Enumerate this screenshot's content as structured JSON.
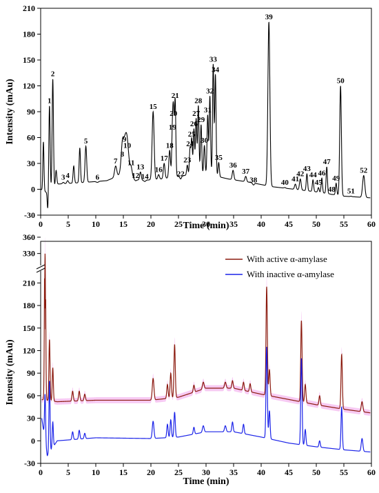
{
  "chart_data": [
    {
      "type": "line",
      "xlabel": "Time (min)",
      "ylabel": "Intensity (mAu)",
      "xlim": [
        0,
        60
      ],
      "ylim": [
        -30,
        210
      ],
      "x_ticks": [
        0,
        5,
        10,
        15,
        20,
        25,
        30,
        35,
        40,
        45,
        50,
        55,
        60
      ],
      "y_ticks": [
        -30,
        0,
        30,
        60,
        90,
        120,
        150,
        180,
        210
      ],
      "baseline": [
        [
          0,
          0
        ],
        [
          1.5,
          -5
        ],
        [
          3,
          6
        ],
        [
          8,
          8
        ],
        [
          12,
          10
        ],
        [
          15,
          18
        ],
        [
          18,
          10
        ],
        [
          22,
          12
        ],
        [
          26,
          16
        ],
        [
          30,
          18
        ],
        [
          34,
          12
        ],
        [
          38,
          8
        ],
        [
          42,
          3
        ],
        [
          46,
          0
        ],
        [
          50,
          -3
        ],
        [
          55,
          -8
        ],
        [
          60,
          -10
        ]
      ],
      "peaks": [
        {
          "label": "1",
          "x": 1.6,
          "y": 97,
          "w": 0.12
        },
        {
          "label": "2",
          "x": 2.2,
          "y": 128,
          "w": 0.12
        },
        {
          "label": "3",
          "x": 4.1,
          "y": 8,
          "w": 0.15
        },
        {
          "label": "4",
          "x": 4.9,
          "y": 10,
          "w": 0.15
        },
        {
          "label": "5",
          "x": 8.2,
          "y": 50,
          "w": 0.15
        },
        {
          "label": "6",
          "x": 10.3,
          "y": 8,
          "w": 0.2
        },
        {
          "label": "7",
          "x": 13.6,
          "y": 27,
          "w": 0.2
        },
        {
          "label": "8",
          "x": 14.8,
          "y": 35,
          "w": 0.2
        },
        {
          "label": "9",
          "x": 15.2,
          "y": 52,
          "w": 0.4
        },
        {
          "label": "10",
          "x": 15.7,
          "y": 45,
          "w": 0.3
        },
        {
          "label": "11",
          "x": 16.4,
          "y": 25,
          "w": 0.2
        },
        {
          "label": "12",
          "x": 17.2,
          "y": 10,
          "w": 0.2
        },
        {
          "label": "13",
          "x": 18.1,
          "y": 20,
          "w": 0.15
        },
        {
          "label": "14",
          "x": 18.9,
          "y": 9,
          "w": 0.15
        },
        {
          "label": "15",
          "x": 20.4,
          "y": 90,
          "w": 0.18
        },
        {
          "label": "16",
          "x": 21.4,
          "y": 17,
          "w": 0.15
        },
        {
          "label": "17",
          "x": 22.4,
          "y": 30,
          "w": 0.15
        },
        {
          "label": "18",
          "x": 23.4,
          "y": 45,
          "w": 0.15
        },
        {
          "label": "19",
          "x": 23.9,
          "y": 66,
          "w": 0.12
        },
        {
          "label": "20",
          "x": 24.1,
          "y": 82,
          "w": 0.12
        },
        {
          "label": "21",
          "x": 24.4,
          "y": 103,
          "w": 0.12
        },
        {
          "label": "22",
          "x": 25.4,
          "y": 12,
          "w": 0.15
        },
        {
          "label": "23",
          "x": 26.6,
          "y": 28,
          "w": 0.12
        },
        {
          "label": "24",
          "x": 27.1,
          "y": 47,
          "w": 0.12
        },
        {
          "label": "25",
          "x": 27.4,
          "y": 58,
          "w": 0.12
        },
        {
          "label": "26",
          "x": 27.8,
          "y": 70,
          "w": 0.12
        },
        {
          "label": "27",
          "x": 28.2,
          "y": 82,
          "w": 0.12
        },
        {
          "label": "28",
          "x": 28.6,
          "y": 97,
          "w": 0.12
        },
        {
          "label": "29",
          "x": 29.1,
          "y": 75,
          "w": 0.12
        },
        {
          "label": "30",
          "x": 29.7,
          "y": 51,
          "w": 0.12
        },
        {
          "label": "31",
          "x": 30.3,
          "y": 86,
          "w": 0.12
        },
        {
          "label": "32",
          "x": 30.7,
          "y": 108,
          "w": 0.12
        },
        {
          "label": "33",
          "x": 31.3,
          "y": 145,
          "w": 0.12
        },
        {
          "label": "34",
          "x": 31.7,
          "y": 133,
          "w": 0.12
        },
        {
          "label": "35",
          "x": 32.3,
          "y": 31,
          "w": 0.12
        },
        {
          "label": "36",
          "x": 34.9,
          "y": 22,
          "w": 0.15
        },
        {
          "label": "37",
          "x": 37.2,
          "y": 15,
          "w": 0.15
        },
        {
          "label": "38",
          "x": 38.6,
          "y": 5,
          "w": 0.15
        },
        {
          "label": "39",
          "x": 41.4,
          "y": 194,
          "w": 0.18
        },
        {
          "label": "40",
          "x": 44.3,
          "y": 2,
          "w": 0.15
        },
        {
          "label": "41",
          "x": 46.2,
          "y": 6,
          "w": 0.15
        },
        {
          "label": "42",
          "x": 47.1,
          "y": 12,
          "w": 0.15
        },
        {
          "label": "43",
          "x": 48.3,
          "y": 18,
          "w": 0.12
        },
        {
          "label": "44",
          "x": 49.4,
          "y": 11,
          "w": 0.12
        },
        {
          "label": "45",
          "x": 50.4,
          "y": 2,
          "w": 0.12
        },
        {
          "label": "46",
          "x": 51.0,
          "y": 13,
          "w": 0.12
        },
        {
          "label": "47",
          "x": 51.9,
          "y": 26,
          "w": 0.12
        },
        {
          "label": "48",
          "x": 52.8,
          "y": -6,
          "w": 0.12
        },
        {
          "label": "49",
          "x": 53.6,
          "y": 7,
          "w": 0.12
        },
        {
          "label": "50",
          "x": 54.4,
          "y": 120,
          "w": 0.15
        },
        {
          "label": "51",
          "x": 56.3,
          "y": -8,
          "w": 0.12
        },
        {
          "label": "52",
          "x": 58.6,
          "y": 16,
          "w": 0.2
        }
      ],
      "minor_peaks": [
        {
          "x": 0.5,
          "y": 55,
          "w": 0.1
        },
        {
          "x": 1.3,
          "y": -25,
          "w": 0.1
        },
        {
          "x": 2.8,
          "y": 22,
          "w": 0.12
        },
        {
          "x": 6.0,
          "y": 27,
          "w": 0.12
        },
        {
          "x": 7.1,
          "y": 48,
          "w": 0.12
        }
      ]
    },
    {
      "type": "line",
      "xlabel": "Time (min)",
      "ylabel": "Intensity (mAu)",
      "xlim": [
        0,
        60
      ],
      "ylim": [
        -30,
        360
      ],
      "axis_break": [
        225,
        315
      ],
      "x_ticks": [
        0,
        5,
        10,
        15,
        20,
        25,
        30,
        35,
        40,
        45,
        50,
        55,
        60
      ],
      "y_ticks": [
        -30,
        0,
        30,
        60,
        90,
        120,
        150,
        180,
        210,
        330,
        360
      ],
      "legend_position": "top-right",
      "colors": {
        "active": "#8b1a0e",
        "inactive": "#1a22e8",
        "error_band": "#f4b8ef"
      },
      "series": [
        {
          "name": "With active α-amylase",
          "baseline": [
            [
              0,
              55
            ],
            [
              3,
              52
            ],
            [
              10,
              54
            ],
            [
              20,
              54
            ],
            [
              25,
              58
            ],
            [
              30,
              70
            ],
            [
              35,
              70
            ],
            [
              40,
              62
            ],
            [
              45,
              55
            ],
            [
              50,
              48
            ],
            [
              55,
              42
            ],
            [
              60,
              37
            ]
          ],
          "peaks": [
            {
              "x": 0.8,
              "y": 330,
              "w": 0.1
            },
            {
              "x": 1.6,
              "y": 135,
              "w": 0.1
            },
            {
              "x": 2.2,
              "y": 97,
              "w": 0.1
            },
            {
              "x": 5.8,
              "y": 66,
              "w": 0.12
            },
            {
              "x": 7.0,
              "y": 66,
              "w": 0.12
            },
            {
              "x": 8.0,
              "y": 62,
              "w": 0.12
            },
            {
              "x": 20.4,
              "y": 83,
              "w": 0.15
            },
            {
              "x": 23.0,
              "y": 75,
              "w": 0.12
            },
            {
              "x": 23.6,
              "y": 90,
              "w": 0.12
            },
            {
              "x": 24.3,
              "y": 128,
              "w": 0.12
            },
            {
              "x": 27.8,
              "y": 74,
              "w": 0.12
            },
            {
              "x": 29.5,
              "y": 78,
              "w": 0.15
            },
            {
              "x": 33.5,
              "y": 78,
              "w": 0.15
            },
            {
              "x": 34.8,
              "y": 80,
              "w": 0.12
            },
            {
              "x": 36.8,
              "y": 78,
              "w": 0.12
            },
            {
              "x": 38.0,
              "y": 76,
              "w": 0.12
            },
            {
              "x": 41.0,
              "y": 205,
              "w": 0.12
            },
            {
              "x": 41.5,
              "y": 95,
              "w": 0.12
            },
            {
              "x": 47.3,
              "y": 160,
              "w": 0.12
            },
            {
              "x": 48.0,
              "y": 75,
              "w": 0.12
            },
            {
              "x": 50.6,
              "y": 60,
              "w": 0.12
            },
            {
              "x": 54.6,
              "y": 115,
              "w": 0.12
            },
            {
              "x": 58.3,
              "y": 52,
              "w": 0.15
            }
          ]
        },
        {
          "name": "With inactive α-amylase",
          "baseline": [
            [
              0,
              40
            ],
            [
              1.2,
              -20
            ],
            [
              3,
              0
            ],
            [
              10,
              4
            ],
            [
              20,
              3
            ],
            [
              25,
              5
            ],
            [
              30,
              12
            ],
            [
              35,
              12
            ],
            [
              40,
              5
            ],
            [
              45,
              -3
            ],
            [
              50,
              -8
            ],
            [
              55,
              -12
            ],
            [
              60,
              -15
            ]
          ],
          "peaks": [
            {
              "x": 0.8,
              "y": 62,
              "w": 0.1
            },
            {
              "x": 1.6,
              "y": 80,
              "w": 0.1
            },
            {
              "x": 2.2,
              "y": 25,
              "w": 0.1
            },
            {
              "x": 5.8,
              "y": 12,
              "w": 0.12
            },
            {
              "x": 7.0,
              "y": 14,
              "w": 0.12
            },
            {
              "x": 8.0,
              "y": 10,
              "w": 0.12
            },
            {
              "x": 20.4,
              "y": 26,
              "w": 0.15
            },
            {
              "x": 23.0,
              "y": 22,
              "w": 0.12
            },
            {
              "x": 23.6,
              "y": 28,
              "w": 0.12
            },
            {
              "x": 24.3,
              "y": 38,
              "w": 0.12
            },
            {
              "x": 27.8,
              "y": 18,
              "w": 0.12
            },
            {
              "x": 29.5,
              "y": 20,
              "w": 0.15
            },
            {
              "x": 33.5,
              "y": 20,
              "w": 0.15
            },
            {
              "x": 34.8,
              "y": 25,
              "w": 0.12
            },
            {
              "x": 36.8,
              "y": 22,
              "w": 0.12
            },
            {
              "x": 41.0,
              "y": 125,
              "w": 0.12
            },
            {
              "x": 41.5,
              "y": 40,
              "w": 0.12
            },
            {
              "x": 47.3,
              "y": 110,
              "w": 0.12
            },
            {
              "x": 48.0,
              "y": 15,
              "w": 0.12
            },
            {
              "x": 50.6,
              "y": 0,
              "w": 0.12
            },
            {
              "x": 54.6,
              "y": 45,
              "w": 0.12
            },
            {
              "x": 58.3,
              "y": 3,
              "w": 0.15
            }
          ]
        }
      ]
    }
  ]
}
